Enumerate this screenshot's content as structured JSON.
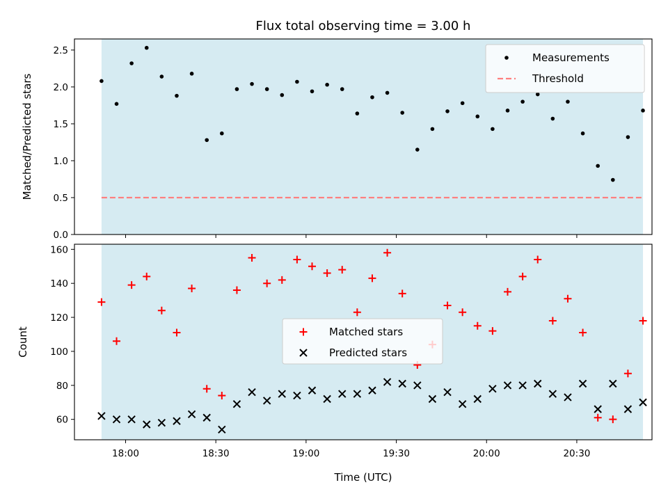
{
  "figure": {
    "title": "Flux total observing time = 3.00 h",
    "xlabel": "Time (UTC)"
  },
  "colors": {
    "shade": "#add8e6",
    "measurement": "#000000",
    "threshold": "#ff7f7f",
    "matched": "#ff0000",
    "predicted": "#000000"
  },
  "chart_data": [
    {
      "type": "scatter",
      "ylabel": "Matched/Predicted stars",
      "xlim": [
        "17:43",
        "20:55"
      ],
      "ylim": [
        0,
        2.65
      ],
      "shaded_range": [
        "17:52",
        "20:52"
      ],
      "grid": false,
      "legend_position": "upper right",
      "x_ticks": [
        "18:00",
        "18:30",
        "19:00",
        "19:30",
        "20:00",
        "20:30"
      ],
      "y_ticks": [
        "0.0",
        "0.5",
        "1.0",
        "1.5",
        "2.0",
        "2.5"
      ],
      "series": [
        {
          "name": "Measurements",
          "kind": "dot",
          "x": [
            "17:52",
            "17:57",
            "18:02",
            "18:07",
            "18:12",
            "18:17",
            "18:22",
            "18:27",
            "18:32",
            "18:37",
            "18:42",
            "18:47",
            "18:52",
            "18:57",
            "19:02",
            "19:07",
            "19:12",
            "19:17",
            "19:22",
            "19:27",
            "19:32",
            "19:37",
            "19:42",
            "19:47",
            "19:52",
            "19:57",
            "20:02",
            "20:07",
            "20:12",
            "20:17",
            "20:22",
            "20:27",
            "20:32",
            "20:37",
            "20:42",
            "20:47",
            "20:52"
          ],
          "y": [
            2.08,
            1.77,
            2.32,
            2.53,
            2.14,
            1.88,
            2.18,
            1.28,
            1.37,
            1.97,
            2.04,
            1.97,
            1.89,
            2.07,
            1.94,
            2.03,
            1.97,
            1.64,
            1.86,
            1.92,
            1.65,
            1.15,
            1.43,
            1.67,
            1.78,
            1.6,
            1.43,
            1.68,
            1.8,
            1.9,
            1.57,
            1.8,
            1.37,
            0.93,
            0.74,
            1.32,
            1.68
          ]
        },
        {
          "name": "Threshold",
          "kind": "hline",
          "y": 0.5,
          "x": [
            "17:52",
            "20:52"
          ]
        }
      ]
    },
    {
      "type": "scatter",
      "ylabel": "Count",
      "xlim": [
        "17:43",
        "20:55"
      ],
      "ylim": [
        48,
        163
      ],
      "shaded_range": [
        "17:52",
        "20:52"
      ],
      "grid": false,
      "legend_position": "center",
      "x_ticks": [
        "18:00",
        "18:30",
        "19:00",
        "19:30",
        "20:00",
        "20:30"
      ],
      "y_ticks": [
        "60",
        "80",
        "100",
        "120",
        "140",
        "160"
      ],
      "series": [
        {
          "name": "Matched stars",
          "kind": "plus",
          "x": [
            "17:52",
            "17:57",
            "18:02",
            "18:07",
            "18:12",
            "18:17",
            "18:22",
            "18:27",
            "18:32",
            "18:37",
            "18:42",
            "18:47",
            "18:52",
            "18:57",
            "19:02",
            "19:07",
            "19:12",
            "19:17",
            "19:22",
            "19:27",
            "19:32",
            "19:37",
            "19:42",
            "19:47",
            "19:52",
            "19:57",
            "20:02",
            "20:07",
            "20:12",
            "20:17",
            "20:22",
            "20:27",
            "20:32",
            "20:37",
            "20:42",
            "20:47",
            "20:52"
          ],
          "y": [
            129,
            106,
            139,
            144,
            124,
            111,
            137,
            78,
            74,
            136,
            155,
            140,
            142,
            154,
            150,
            146,
            148,
            123,
            143,
            158,
            134,
            92,
            104,
            127,
            123,
            115,
            112,
            135,
            144,
            154,
            118,
            131,
            111,
            61,
            60,
            87,
            118
          ]
        },
        {
          "name": "Predicted stars",
          "kind": "x",
          "x": [
            "17:52",
            "17:57",
            "18:02",
            "18:07",
            "18:12",
            "18:17",
            "18:22",
            "18:27",
            "18:32",
            "18:37",
            "18:42",
            "18:47",
            "18:52",
            "18:57",
            "19:02",
            "19:07",
            "19:12",
            "19:17",
            "19:22",
            "19:27",
            "19:32",
            "19:37",
            "19:42",
            "19:47",
            "19:52",
            "19:57",
            "20:02",
            "20:07",
            "20:12",
            "20:17",
            "20:22",
            "20:27",
            "20:32",
            "20:37",
            "20:42",
            "20:47",
            "20:52"
          ],
          "y": [
            62,
            60,
            60,
            57,
            58,
            59,
            63,
            61,
            54,
            69,
            76,
            71,
            75,
            74,
            77,
            72,
            75,
            75,
            77,
            82,
            81,
            80,
            72,
            76,
            69,
            72,
            78,
            80,
            80,
            81,
            75,
            73,
            81,
            66,
            81,
            66,
            70
          ]
        }
      ]
    }
  ]
}
